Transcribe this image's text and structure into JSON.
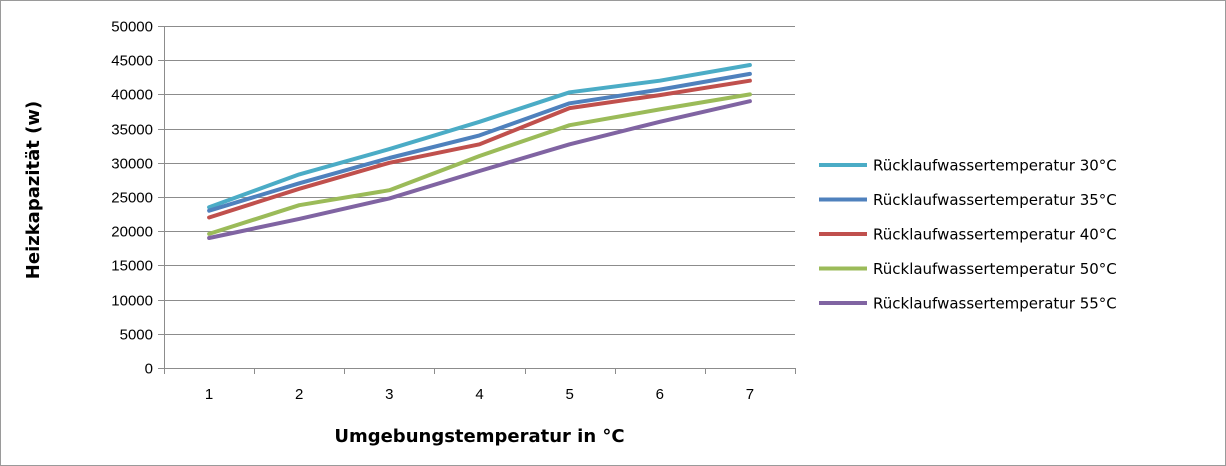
{
  "chart_data": {
    "type": "line",
    "title": "",
    "xlabel": "Umgebungstemperatur in °C",
    "ylabel": "Heizkapazität (w)",
    "x": [
      1,
      2,
      3,
      4,
      5,
      6,
      7
    ],
    "x_tick_labels": [
      "1",
      "2",
      "3",
      "4",
      "5",
      "6",
      "7"
    ],
    "ylim": [
      0,
      50000
    ],
    "y_ticks": [
      0,
      5000,
      10000,
      15000,
      20000,
      25000,
      30000,
      35000,
      40000,
      45000,
      50000
    ],
    "y_tick_labels": [
      "0",
      "5000",
      "10000",
      "15000",
      "20000",
      "25000",
      "30000",
      "35000",
      "40000",
      "45000",
      "50000"
    ],
    "grid": "horizontal",
    "legend_position": "right",
    "series": [
      {
        "name": "Rücklaufwassertemperatur 30°C",
        "color": "#4bacc6",
        "values": [
          23500,
          28300,
          32000,
          36000,
          40300,
          42000,
          44300
        ]
      },
      {
        "name": "Rücklaufwassertemperatur 35°C",
        "color": "#4f81bd",
        "values": [
          23000,
          27000,
          30700,
          34000,
          38700,
          40700,
          43000
        ]
      },
      {
        "name": "Rücklaufwassertemperatur 40°C",
        "color": "#c0504d",
        "values": [
          22000,
          26200,
          30000,
          32700,
          38000,
          39900,
          42000
        ]
      },
      {
        "name": "Rücklaufwassertemperatur 50°C",
        "color": "#9bbb59",
        "values": [
          19600,
          23800,
          26000,
          31000,
          35500,
          37800,
          40000
        ]
      },
      {
        "name": "Rücklaufwassertemperatur 55°C",
        "color": "#8064a2",
        "values": [
          19000,
          21800,
          24800,
          28800,
          32700,
          36000,
          39000
        ]
      }
    ]
  }
}
